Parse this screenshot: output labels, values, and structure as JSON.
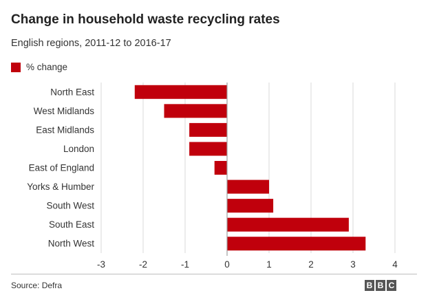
{
  "header": {
    "title": "Change in household waste recycling rates",
    "subtitle": "English regions, 2011-12 to 2016-17"
  },
  "footer": {
    "source": "Source: Defra",
    "logo": [
      "B",
      "B",
      "C"
    ]
  },
  "colors": {
    "bar": "#c0000c",
    "gridline": "#d9d9d9",
    "zero_line": "#9e9e9e",
    "text": "#333333"
  },
  "chart_data": {
    "type": "bar",
    "orientation": "horizontal",
    "title": "Change in household waste recycling rates",
    "subtitle": "English regions, 2011-12 to 2016-17",
    "categories": [
      "North East",
      "West Midlands",
      "East Midlands",
      "London",
      "East of England",
      "Yorks & Humber",
      "South West",
      "South East",
      "North West"
    ],
    "series": [
      {
        "name": "% change",
        "values": [
          -2.2,
          -1.5,
          -0.9,
          -0.9,
          -0.3,
          1.0,
          1.1,
          2.9,
          3.3
        ]
      }
    ],
    "xlim": [
      -3,
      4
    ],
    "xticks": [
      -3,
      -2,
      -1,
      0,
      1,
      2,
      3,
      4
    ],
    "grid": true,
    "legend": "top-left"
  }
}
